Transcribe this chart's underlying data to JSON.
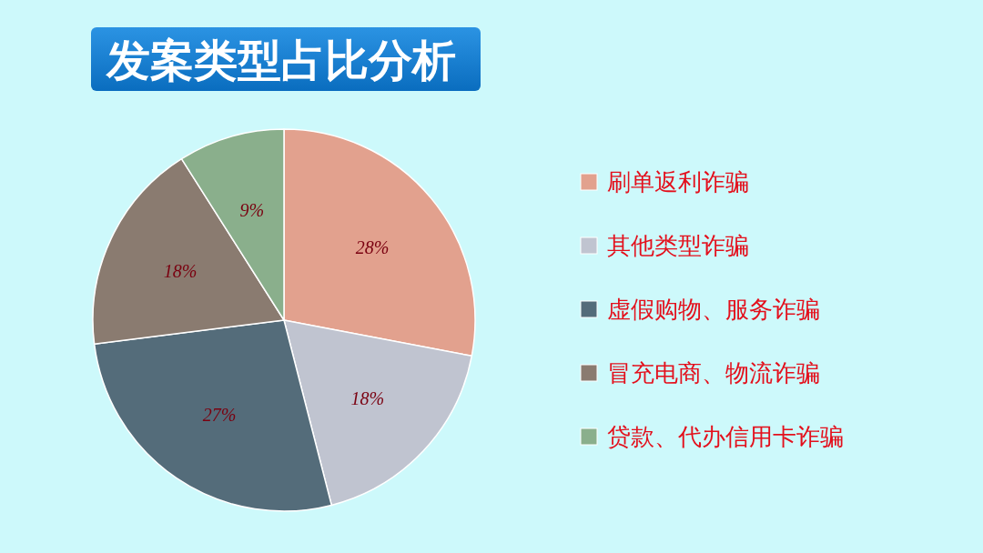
{
  "chart_data": {
    "type": "pie",
    "title": "发案类型占比分析",
    "categories": [
      "刷单返利诈骗",
      "其他类型诈骗",
      "虚假购物、服务诈骗",
      "冒充电商、物流诈骗",
      "贷款、代办信用卡诈骗"
    ],
    "values": [
      28,
      18,
      27,
      18,
      9
    ],
    "colors": [
      "#e2a18e",
      "#c0c4d0",
      "#546c7a",
      "#8a7b70",
      "#8aaf8c"
    ],
    "value_labels": [
      "28%",
      "18%",
      "27%",
      "18%",
      "9%"
    ],
    "legend": "right"
  }
}
